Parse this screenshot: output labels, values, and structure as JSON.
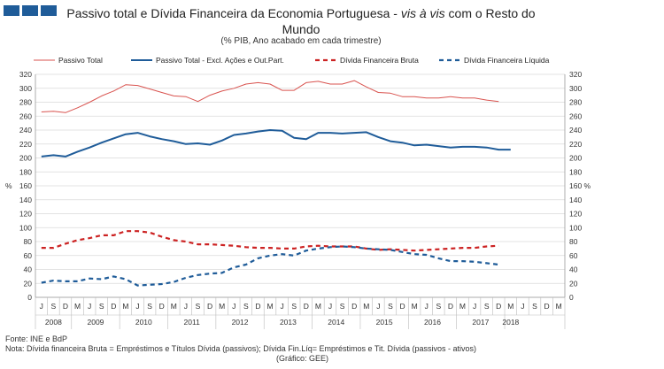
{
  "header": {
    "title_part1": "Passivo total e Dívida Financeira da Economia Portuguesa - ",
    "title_italic": "vis à vis",
    "title_part2": " com o Resto do Mundo",
    "subtitle": "(% PIB, Ano acabado em cada trimestre)"
  },
  "footer": {
    "source": "Fonte: INE e BdP",
    "note": "Nota: Dívida financeira Bruta = Empréstimos e Títulos Dívida (passivos); Dívida Fin.Líq= Empréstimos e Tit. Dívida (passivos - ativos)",
    "credit": "(Gráfico: GEE)"
  },
  "chart_data": {
    "type": "line",
    "x_quarter_labels": [
      "J",
      "S",
      "D",
      "M",
      "J",
      "S",
      "D",
      "M",
      "J",
      "S",
      "D",
      "M",
      "J",
      "S",
      "D",
      "M",
      "J",
      "S",
      "D",
      "M",
      "J",
      "S",
      "D",
      "M",
      "J",
      "S",
      "D",
      "M",
      "J",
      "S",
      "D",
      "M",
      "J",
      "S",
      "D",
      "M",
      "J",
      "S",
      "D",
      "M",
      "J",
      "S",
      "D",
      "M"
    ],
    "year_labels": [
      {
        "label": "2008",
        "first": 0,
        "last": 2
      },
      {
        "label": "2009",
        "first": 3,
        "last": 6
      },
      {
        "label": "2010",
        "first": 7,
        "last": 10
      },
      {
        "label": "2011",
        "first": 11,
        "last": 14
      },
      {
        "label": "2012",
        "first": 15,
        "last": 18
      },
      {
        "label": "2013",
        "first": 19,
        "last": 22
      },
      {
        "label": "2014",
        "first": 23,
        "last": 26
      },
      {
        "label": "2015",
        "first": 27,
        "last": 30
      },
      {
        "label": "2016",
        "first": 31,
        "last": 34
      },
      {
        "label": "2017",
        "first": 35,
        "last": 38
      },
      {
        "label": "2018",
        "first": 39,
        "last": 39
      }
    ],
    "ylim": [
      0,
      320
    ],
    "yticks": [
      0,
      20,
      40,
      60,
      80,
      100,
      120,
      140,
      160,
      180,
      200,
      220,
      240,
      260,
      280,
      300,
      320
    ],
    "unit_label_left": "%",
    "unit_label_right": "%",
    "unit_tick_value": 160,
    "grid": true,
    "legend_position": "top",
    "series": [
      {
        "name": "Passivo Total",
        "color": "#d9534f",
        "dash": "solid",
        "width": 1,
        "values": [
          266,
          267,
          265,
          272,
          280,
          289,
          296,
          305,
          304,
          299,
          294,
          289,
          288,
          281,
          290,
          296,
          300,
          306,
          308,
          306,
          297,
          297,
          308,
          310,
          306,
          306,
          311,
          302,
          294,
          293,
          288,
          288,
          286,
          286,
          288,
          286,
          286,
          283,
          281
        ]
      },
      {
        "name": "Passivo Total - Excl. Ações e Out.Part.",
        "color": "#1f5c99",
        "dash": "solid",
        "width": 2,
        "values": [
          202,
          204,
          202,
          209,
          215,
          222,
          228,
          234,
          236,
          231,
          227,
          224,
          220,
          221,
          219,
          225,
          233,
          235,
          238,
          240,
          239,
          229,
          227,
          236,
          236,
          235,
          236,
          237,
          230,
          224,
          222,
          218,
          219,
          217,
          215,
          216,
          216,
          215,
          212,
          212
        ]
      },
      {
        "name": "Dívida Financeira Bruta",
        "color": "#cc2222",
        "dash": "5,4",
        "width": 2.2,
        "values": [
          71,
          71,
          77,
          82,
          85,
          89,
          89,
          95,
          95,
          93,
          87,
          82,
          80,
          76,
          76,
          75,
          74,
          72,
          71,
          71,
          70,
          70,
          73,
          74,
          73,
          73,
          73,
          70,
          68,
          69,
          68,
          67,
          68,
          69,
          70,
          71,
          71,
          73,
          74
        ]
      },
      {
        "name": "Dívida Financeira Líquida",
        "color": "#1f5c99",
        "dash": "5,4",
        "width": 2.2,
        "values": [
          21,
          24,
          23,
          23,
          27,
          26,
          30,
          26,
          17,
          18,
          19,
          22,
          28,
          32,
          34,
          35,
          43,
          47,
          56,
          60,
          62,
          60,
          67,
          70,
          72,
          73,
          72,
          70,
          69,
          68,
          65,
          62,
          61,
          56,
          52,
          52,
          51,
          49,
          47
        ]
      }
    ]
  }
}
